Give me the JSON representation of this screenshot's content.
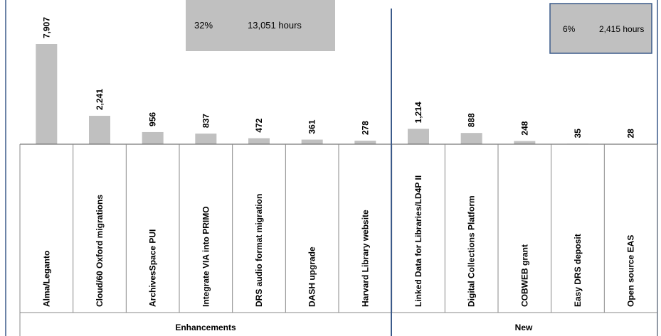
{
  "chart_data": {
    "type": "bar",
    "categories": [
      "Alma/Leganto",
      "Cloud/60 Oxford migrations",
      "ArchivesSpace PUI",
      "Integrate VIA into PRIMO",
      "DRS audio format migration",
      "DASH upgrade",
      "Harvard Library website",
      "Linked Data for Libraries/LD4P II",
      "Digital Collections Platform",
      "COBWEB grant",
      "Easy DRS deposit",
      "Open source EAS"
    ],
    "values": [
      7907,
      2241,
      956,
      837,
      472,
      361,
      278,
      1214,
      888,
      248,
      35,
      28
    ],
    "value_labels": [
      "7,907",
      "2,241",
      "956",
      "837",
      "472",
      "361",
      "278",
      "1,214",
      "888",
      "248",
      "35",
      "28"
    ],
    "groups": [
      {
        "label": "Enhancements",
        "count": 7,
        "percent": "32%",
        "hours": "13,051 hours"
      },
      {
        "label": "New",
        "count": 5,
        "percent": "6%",
        "hours": "2,415 hours"
      }
    ],
    "ylim": [
      0,
      7907
    ],
    "grid": false,
    "colors": {
      "bar": "#c0c0c0",
      "divider": "#3b5a8a",
      "table_line": "#888888",
      "box_fill": "#c0c0c0",
      "box_border": "#3b5a8a"
    }
  }
}
